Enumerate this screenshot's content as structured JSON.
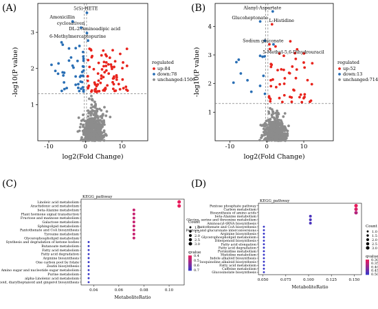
{
  "panels": {
    "A": {
      "label": "(A)",
      "type": "scatter",
      "xlabel": "log2(Fold Change)",
      "ylabel": "-log10(P value)",
      "xticks": [
        -10,
        0,
        10
      ],
      "yticks": [
        1,
        2,
        3
      ],
      "xlim": [
        -13,
        17
      ],
      "ylim": [
        0,
        3.8
      ],
      "threshold_y": 1.3,
      "threshold_x": [
        -0.3,
        0.3
      ],
      "legend": {
        "title": "regulated",
        "entries": [
          {
            "name": "up:84",
            "color": "#e8241d"
          },
          {
            "name": "down:78",
            "color": "#2a6fb5"
          },
          {
            "name": "unchanged:1506",
            "color": "#8c8c8c"
          }
        ]
      },
      "annotations": [
        {
          "text": "5(S)-HETE",
          "x": 0.1,
          "y": 3.62
        },
        {
          "text": "Amoxicillin",
          "x": -6.3,
          "y": 3.38
        },
        {
          "text": "cyclosativen",
          "x": -4.0,
          "y": 3.21
        },
        {
          "text": "DL-2-Aminoadipic acid",
          "x": 2.5,
          "y": 3.06
        },
        {
          "text": "6-Methylmercaptopurine",
          "x": -2.1,
          "y": 2.85
        }
      ]
    },
    "B": {
      "label": "(B)",
      "type": "scatter",
      "xlabel": "log2(Fold Change)",
      "ylabel": "-log10(P value)",
      "xticks": [
        -10,
        0,
        10
      ],
      "yticks": [
        1,
        2,
        3,
        4
      ],
      "xlim": [
        -14,
        18
      ],
      "ylim": [
        0,
        4.8
      ],
      "threshold_y": 1.3,
      "threshold_x": [
        -0.3,
        0.3
      ],
      "legend": {
        "title": "regulated",
        "entries": [
          {
            "name": "up:52",
            "color": "#e8241d"
          },
          {
            "name": "down:13",
            "color": "#2a6fb5"
          },
          {
            "name": "unchanged:714",
            "color": "#8c8c8c"
          }
        ]
      },
      "annotations": [
        {
          "text": "Alanyl-Aspartate",
          "x": -1.2,
          "y": 4.6
        },
        {
          "text": "Glucoheptonate",
          "x": -4.6,
          "y": 4.25
        },
        {
          "text": "L-Histidine",
          "x": 4.0,
          "y": 4.15
        },
        {
          "text": "Sodium gluconate",
          "x": -1.0,
          "y": 3.45
        },
        {
          "text": "5-Methyl-5,6-Dihydrouracil",
          "x": 7.2,
          "y": 3.05
        }
      ]
    },
    "C": {
      "label": "(C)",
      "type": "scatter",
      "title": "KEGG_pathway",
      "xlabel": "MetaboliteRatio",
      "xticks": [
        0.04,
        0.06,
        0.08,
        0.1
      ],
      "xlim": [
        0.03,
        0.112
      ],
      "legend_count": {
        "title": "Count",
        "values": [
          "1.0",
          "1.5",
          "2.0",
          "2.5",
          "3.0"
        ]
      },
      "legend_q": {
        "title": "qvalue",
        "values": [
          "0.4",
          "0.5",
          "0.6",
          "0.7"
        ]
      },
      "pathways": [
        {
          "name": "Linoleic acid metabolism",
          "ratio": 0.108,
          "count": 3,
          "q": 0.38
        },
        {
          "name": "Arachidonic acid metabolism",
          "ratio": 0.108,
          "count": 3,
          "q": 0.38
        },
        {
          "name": "beta-Alanine metabolism",
          "ratio": 0.072,
          "count": 2,
          "q": 0.45
        },
        {
          "name": "Plant hormone signal transduction",
          "ratio": 0.072,
          "count": 2,
          "q": 0.45
        },
        {
          "name": "Fructose and mannose metabolism",
          "ratio": 0.072,
          "count": 2,
          "q": 0.45
        },
        {
          "name": "Galactose metabolism",
          "ratio": 0.072,
          "count": 2,
          "q": 0.45
        },
        {
          "name": "Sphingolipid metabolism",
          "ratio": 0.072,
          "count": 2,
          "q": 0.45
        },
        {
          "name": "Pantothenate and CoA biosynthesis",
          "ratio": 0.072,
          "count": 2,
          "q": 0.45
        },
        {
          "name": "Tyrosine metabolism",
          "ratio": 0.072,
          "count": 2,
          "q": 0.45
        },
        {
          "name": "Glycerophospholipid metabolism",
          "ratio": 0.072,
          "count": 2,
          "q": 0.45
        },
        {
          "name": "Synthesis and degradation of ketone bodies",
          "ratio": 0.036,
          "count": 1,
          "q": 0.75
        },
        {
          "name": "Butanoate metabolism",
          "ratio": 0.036,
          "count": 1,
          "q": 0.75
        },
        {
          "name": "Fatty acid metabolism",
          "ratio": 0.036,
          "count": 1,
          "q": 0.75
        },
        {
          "name": "Fatty acid degradation",
          "ratio": 0.036,
          "count": 1,
          "q": 0.75
        },
        {
          "name": "Arginine biosynthesis",
          "ratio": 0.036,
          "count": 1,
          "q": 0.75
        },
        {
          "name": "One carbon pool by folate",
          "ratio": 0.036,
          "count": 1,
          "q": 0.75
        },
        {
          "name": "Zeatin biosynthesis",
          "ratio": 0.036,
          "count": 1,
          "q": 0.75
        },
        {
          "name": "Amino sugar and nucleotide sugar metabolism",
          "ratio": 0.036,
          "count": 1,
          "q": 0.75
        },
        {
          "name": "Purine metabolism",
          "ratio": 0.036,
          "count": 1,
          "q": 0.75
        },
        {
          "name": "alpha-Linolenic acid metabolism",
          "ratio": 0.036,
          "count": 1,
          "q": 0.75
        },
        {
          "name": "Stilbenoid, diarylheptanoid and gingerol biosynthesis",
          "ratio": 0.036,
          "count": 1,
          "q": 0.75
        }
      ]
    },
    "D": {
      "label": "(D)",
      "type": "scatter",
      "title": "KEGG_pathway",
      "xlabel": "MetaboliteRatio",
      "xticks": [
        0.05,
        0.075,
        0.1,
        0.125,
        0.15
      ],
      "xlim": [
        0.045,
        0.158
      ],
      "legend_count": {
        "title": "Count",
        "values": [
          "1.0",
          "1.5",
          "2.0",
          "2.5",
          "3.0"
        ]
      },
      "legend_q": {
        "title": "qvalue",
        "values": [
          "0.30",
          "0.35",
          "0.40",
          "0.45",
          "0.50"
        ]
      },
      "pathways": [
        {
          "name": "Pentose phosphate pathway",
          "ratio": 0.152,
          "count": 3,
          "q": 0.3
        },
        {
          "name": "Carbon metabolism",
          "ratio": 0.152,
          "count": 3,
          "q": 0.32
        },
        {
          "name": "Biosynthesis of amino acids",
          "ratio": 0.152,
          "count": 3,
          "q": 0.36
        },
        {
          "name": "beta-Alanine metabolism",
          "ratio": 0.102,
          "count": 2,
          "q": 0.48
        },
        {
          "name": "Glycine, serine and threonine metabolism",
          "ratio": 0.102,
          "count": 2,
          "q": 0.48
        },
        {
          "name": "Aminoacyl-tRNA biosynthesis",
          "ratio": 0.102,
          "count": 2,
          "q": 0.48
        },
        {
          "name": "Pantothenate and CoA biosynthesis",
          "ratio": 0.051,
          "count": 1,
          "q": 0.5
        },
        {
          "name": "Pentose and glucuronate interconversions",
          "ratio": 0.051,
          "count": 1,
          "q": 0.5
        },
        {
          "name": "Arginine biosynthesis",
          "ratio": 0.051,
          "count": 1,
          "q": 0.5
        },
        {
          "name": "Glycerophospholipid metabolism",
          "ratio": 0.051,
          "count": 1,
          "q": 0.5
        },
        {
          "name": "Diterpenoid biosynthesis",
          "ratio": 0.051,
          "count": 1,
          "q": 0.5
        },
        {
          "name": "Fatty acid elongation",
          "ratio": 0.051,
          "count": 1,
          "q": 0.5
        },
        {
          "name": "Fatty acid degradation",
          "ratio": 0.051,
          "count": 1,
          "q": 0.5
        },
        {
          "name": "Pyrimidine metabolism",
          "ratio": 0.051,
          "count": 1,
          "q": 0.5
        },
        {
          "name": "Histidine metabolism",
          "ratio": 0.051,
          "count": 1,
          "q": 0.5
        },
        {
          "name": "Indole alkaloid biosynthesis",
          "ratio": 0.051,
          "count": 1,
          "q": 0.5
        },
        {
          "name": "Isoquinoline alkaloid biosynthesis",
          "ratio": 0.051,
          "count": 1,
          "q": 0.5
        },
        {
          "name": "Fatty acid metabolism",
          "ratio": 0.051,
          "count": 1,
          "q": 0.5
        },
        {
          "name": "Caffeine metabolism",
          "ratio": 0.051,
          "count": 1,
          "q": 0.5
        },
        {
          "name": "Glucosinolate biosynthesis",
          "ratio": 0.051,
          "count": 1,
          "q": 0.5
        }
      ]
    }
  },
  "colors": {
    "up": "#e8241d",
    "down": "#2a6fb5",
    "unchanged": "#8c8c8c",
    "annotation": "#2a6fb5",
    "annotation_up": "#e8241d"
  }
}
